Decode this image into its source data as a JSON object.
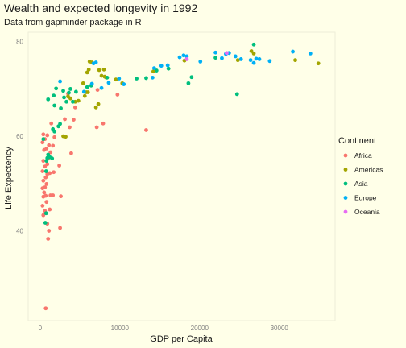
{
  "chart_data": {
    "type": "scatter",
    "title": "Wealth and expected longevity in 1992",
    "subtitle": "Data from gapminder package in R",
    "xlabel": "GDP per Capita",
    "ylabel": "Life Expectency",
    "xlim": [
      -1500,
      37000
    ],
    "ylim": [
      21,
      82
    ],
    "x_ticks": [
      0,
      10000,
      20000,
      30000
    ],
    "y_ticks": [
      40,
      60,
      80
    ],
    "grid": false,
    "legend": {
      "title": "Continent",
      "placement": "right",
      "entries": [
        "Africa",
        "Americas",
        "Asia",
        "Europe",
        "Oceania"
      ]
    },
    "colors": {
      "Africa": "#F8766D",
      "Americas": "#A3A500",
      "Asia": "#00BF7D",
      "Europe": "#00B0F6",
      "Oceania": "#E76BF3",
      "background": "#ffffe8",
      "frame": "#eeeed8"
    },
    "series": [
      {
        "name": "Africa",
        "points": [
          [
            700,
            23.6
          ],
          [
            2500,
            40.6
          ],
          [
            1000,
            38.3
          ],
          [
            1100,
            40.0
          ],
          [
            900,
            41.5
          ],
          [
            400,
            43.3
          ],
          [
            600,
            44.2
          ],
          [
            300,
            45.3
          ],
          [
            1200,
            44.5
          ],
          [
            800,
            46.1
          ],
          [
            400,
            47.2
          ],
          [
            700,
            47.4
          ],
          [
            1300,
            47.5
          ],
          [
            1600,
            47.5
          ],
          [
            2600,
            47.3
          ],
          [
            500,
            48.1
          ],
          [
            300,
            49.0
          ],
          [
            600,
            49.2
          ],
          [
            800,
            49.9
          ],
          [
            400,
            50.6
          ],
          [
            700,
            51.3
          ],
          [
            900,
            52.0
          ],
          [
            300,
            52.6
          ],
          [
            1200,
            52.2
          ],
          [
            1700,
            52.4
          ],
          [
            600,
            53.6
          ],
          [
            900,
            54.1
          ],
          [
            2400,
            53.8
          ],
          [
            400,
            54.8
          ],
          [
            1000,
            55.3
          ],
          [
            1300,
            56.6
          ],
          [
            500,
            57.1
          ],
          [
            800,
            57.4
          ],
          [
            1100,
            58.1
          ],
          [
            1600,
            58.0
          ],
          [
            3900,
            56.4
          ],
          [
            300,
            58.7
          ],
          [
            600,
            59.4
          ],
          [
            900,
            60.2
          ],
          [
            400,
            60.4
          ],
          [
            1400,
            62.7
          ],
          [
            3700,
            61.9
          ],
          [
            3100,
            63.6
          ],
          [
            4200,
            63.5
          ],
          [
            4400,
            66.1
          ],
          [
            7100,
            61.9
          ],
          [
            7900,
            62.7
          ],
          [
            3500,
            69.0
          ],
          [
            7200,
            69.8
          ],
          [
            9700,
            68.8
          ],
          [
            13300,
            61.3
          ],
          [
            1800,
            59.8
          ]
        ]
      },
      {
        "name": "Americas",
        "points": [
          [
            3200,
            59.9
          ],
          [
            2900,
            60.0
          ],
          [
            3800,
            68.0
          ],
          [
            4400,
            67.3
          ],
          [
            4800,
            67.5
          ],
          [
            5600,
            68.5
          ],
          [
            5800,
            69.3
          ],
          [
            6000,
            69.3
          ],
          [
            5400,
            71.2
          ],
          [
            5900,
            73.5
          ],
          [
            6100,
            74.1
          ],
          [
            6500,
            75.6
          ],
          [
            7700,
            72.8
          ],
          [
            7300,
            66.8
          ],
          [
            7000,
            66.1
          ],
          [
            8000,
            74.1
          ],
          [
            8100,
            72.6
          ],
          [
            8300,
            72.4
          ],
          [
            10300,
            71.2
          ],
          [
            9500,
            72.0
          ],
          [
            14200,
            73.7
          ],
          [
            18100,
            76.0
          ],
          [
            26800,
            77.5
          ],
          [
            24800,
            76.1
          ],
          [
            26500,
            78.0
          ],
          [
            32000,
            76.1
          ],
          [
            34900,
            75.4
          ],
          [
            3500,
            68.4
          ],
          [
            6200,
            75.8
          ],
          [
            7400,
            74.0
          ]
        ]
      },
      {
        "name": "Asia",
        "points": [
          [
            650,
            41.7
          ],
          [
            750,
            43.7
          ],
          [
            750,
            52.6
          ],
          [
            800,
            54.8
          ],
          [
            900,
            55.4
          ],
          [
            1000,
            56.1
          ],
          [
            1200,
            55.6
          ],
          [
            1500,
            55.3
          ],
          [
            1800,
            61.0
          ],
          [
            1600,
            61.5
          ],
          [
            2300,
            62.1
          ],
          [
            2500,
            62.6
          ],
          [
            1000,
            67.8
          ],
          [
            1700,
            68.6
          ],
          [
            2000,
            70.1
          ],
          [
            2600,
            65.9
          ],
          [
            2900,
            69.6
          ],
          [
            3300,
            67.3
          ],
          [
            3800,
            70.0
          ],
          [
            3600,
            69.2
          ],
          [
            3000,
            68.2
          ],
          [
            4500,
            69.4
          ],
          [
            5900,
            70.4
          ],
          [
            8400,
            72.4
          ],
          [
            12100,
            72.2
          ],
          [
            18600,
            71.2
          ],
          [
            22000,
            76.6
          ],
          [
            24700,
            68.9
          ],
          [
            26800,
            79.4
          ],
          [
            13300,
            72.3
          ],
          [
            14600,
            73.9
          ],
          [
            16100,
            74.3
          ],
          [
            19000,
            72.5
          ],
          [
            400,
            59.4
          ],
          [
            1800,
            66.5
          ],
          [
            4100,
            67.3
          ],
          [
            6400,
            70.7
          ]
        ]
      },
      {
        "name": "Europe",
        "points": [
          [
            2500,
            71.6
          ],
          [
            6500,
            71.1
          ],
          [
            6700,
            75.4
          ],
          [
            7000,
            75.6
          ],
          [
            8600,
            71.3
          ],
          [
            9900,
            72.2
          ],
          [
            10500,
            71.0
          ],
          [
            14100,
            72.4
          ],
          [
            14300,
            74.4
          ],
          [
            15200,
            74.9
          ],
          [
            16000,
            75.0
          ],
          [
            17500,
            76.7
          ],
          [
            18000,
            77.1
          ],
          [
            18400,
            76.9
          ],
          [
            20100,
            75.8
          ],
          [
            22000,
            77.7
          ],
          [
            22800,
            76.5
          ],
          [
            23300,
            77.4
          ],
          [
            24500,
            76.9
          ],
          [
            25200,
            76.3
          ],
          [
            26400,
            76.1
          ],
          [
            26800,
            75.5
          ],
          [
            27100,
            76.4
          ],
          [
            28800,
            75.9
          ],
          [
            31700,
            77.9
          ],
          [
            33900,
            77.5
          ],
          [
            23700,
            77.6
          ],
          [
            27500,
            76.3
          ],
          [
            5500,
            69.4
          ],
          [
            7700,
            70.2
          ]
        ]
      },
      {
        "name": "Oceania",
        "points": [
          [
            18400,
            76.3
          ],
          [
            23400,
            77.6
          ]
        ]
      }
    ]
  }
}
